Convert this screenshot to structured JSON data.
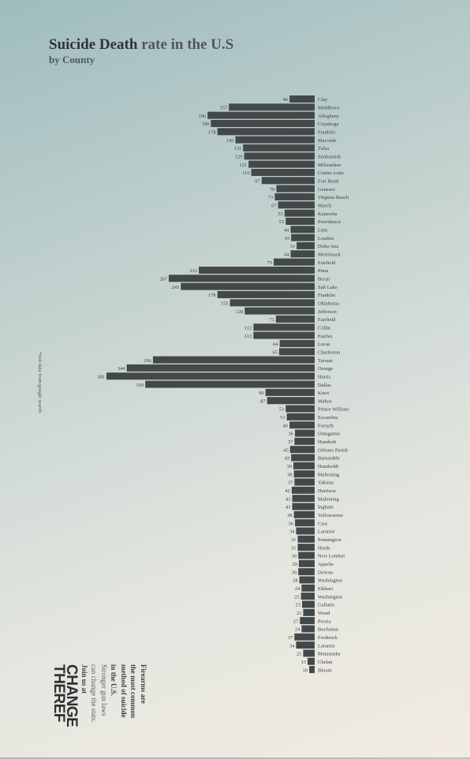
{
  "header": {
    "title_bold": "Suicide Death",
    "title_rest": "rate in the U.S",
    "subtitle": "by County"
  },
  "side_note": "*real data from google search",
  "footer": {
    "lines": [
      "Firearms are",
      "the most common",
      "method of suicide",
      "in the U.S.",
      "Stronger gun laws",
      "can change the stats.",
      "Join us at"
    ],
    "logo_top": "CHANGE",
    "logo_mid": "THE",
    "logo_bottom": "REF"
  },
  "colors": {
    "bar": "#434849",
    "text": "#3c4043"
  },
  "chart_data": {
    "type": "bar",
    "orientation": "horizontal",
    "title": "Suicide Death rate in the U.S",
    "subtitle": "by County",
    "categories": [
      "Clay",
      "Middlesex",
      "Allegheny",
      "Cuyahoga",
      "Franklin",
      "Macomb",
      "Tulsa",
      "Snohomish",
      "Milwaukee",
      "Contra costa",
      "Fort Bend",
      "Genesee",
      "Virginia Beach",
      "March",
      "Kanawha",
      "Providence",
      "Linn",
      "Loudon",
      "Doña Ana",
      "Merrimack",
      "Fairfield",
      "Pima",
      "Bexar",
      "Salt Lake",
      "Franklin",
      "Oklahoma",
      "Jefferson",
      "Fairfield",
      "Collin",
      "Fairfax",
      "Lucas",
      "Charleston",
      "Tarrant",
      "Orange",
      "Harris",
      "Dallas",
      "Knox",
      "Wahoe",
      "Prince William",
      "Escambia",
      "Forsyth",
      "Outagamie",
      "Humbolt",
      "Orleans Parish",
      "Barnstable",
      "Humboldt",
      "Maltoning",
      "Yakima",
      "Harrison",
      "Mahoning",
      "Ingham",
      "Yellowstone",
      "Cass",
      "Laramie",
      "Pennington",
      "Hinds",
      "New London",
      "Apache",
      "DeSoto",
      "Washington",
      "Elkhart",
      "Washington",
      "Gallatin",
      "Wood",
      "Peoria",
      "Buchanan",
      "Frederick",
      "Laramie",
      "Matanuska",
      "Chelan",
      "Blount"
    ],
    "values": [
      46,
      157,
      196,
      190,
      178,
      145,
      131,
      129,
      121,
      116,
      97,
      70,
      73,
      67,
      55,
      53,
      44,
      43,
      33,
      44,
      75,
      212,
      267,
      245,
      178,
      155,
      128,
      71,
      112,
      112,
      64,
      65,
      296,
      344,
      381,
      310,
      90,
      87,
      53,
      51,
      46,
      36,
      37,
      45,
      43,
      39,
      38,
      37,
      42,
      41,
      41,
      38,
      36,
      34,
      31,
      31,
      30,
      29,
      30,
      28,
      24,
      25,
      23,
      21,
      27,
      24,
      37,
      34,
      21,
      13,
      10
    ],
    "xlim": [
      0,
      381
    ]
  }
}
